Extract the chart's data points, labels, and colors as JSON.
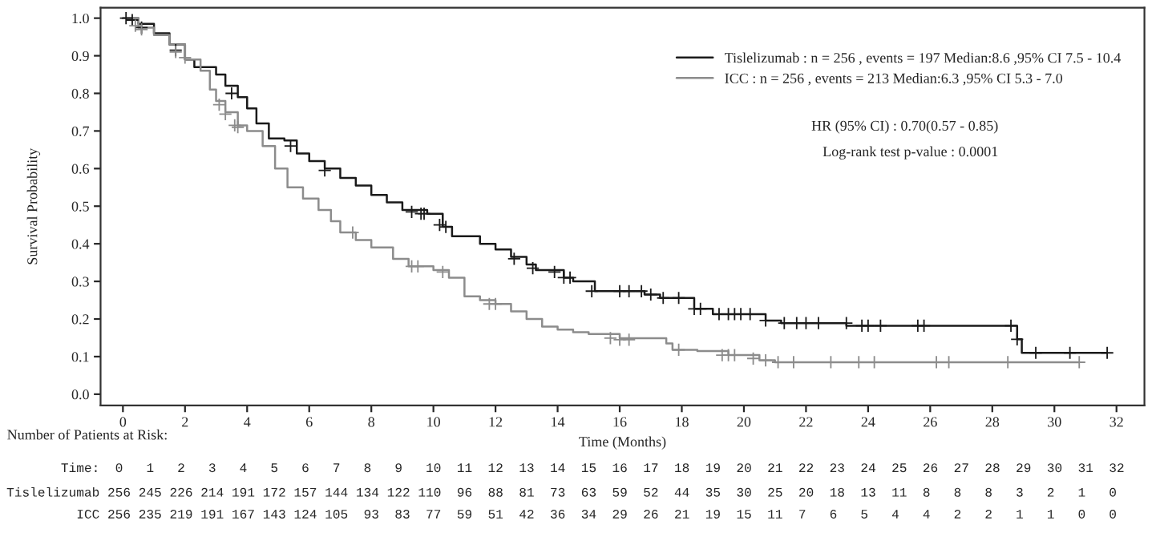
{
  "chart_data": {
    "type": "step",
    "xlabel": "Time (Months)",
    "ylabel": "Survival Probability",
    "xlim": [
      -0.72,
      32.9
    ],
    "ylim": [
      -0.03,
      1.028
    ],
    "xticks": [
      0,
      2,
      4,
      6,
      8,
      10,
      12,
      14,
      16,
      18,
      20,
      22,
      24,
      26,
      28,
      30,
      32
    ],
    "yticks": [
      {
        "value": 0,
        "label": "0.0"
      },
      {
        "value": 0.1,
        "label": "0.1"
      },
      {
        "value": 0.2,
        "label": "0.2"
      },
      {
        "value": 0.3,
        "label": "0.3"
      },
      {
        "value": 0.4,
        "label": "0.4"
      },
      {
        "value": 0.5,
        "label": "0.5"
      },
      {
        "value": 0.6,
        "label": "0.6"
      },
      {
        "value": 0.7,
        "label": "0.7"
      },
      {
        "value": 0.8,
        "label": "0.8"
      },
      {
        "value": 0.9,
        "label": "0.9"
      },
      {
        "value": 1,
        "label": "1.0"
      }
    ],
    "grid": false,
    "legend": "top right",
    "series": [
      {
        "name": "Tislelizumab : n = 256 , events = 197 Median:8.6 ,95% CI 7.5 - 10.4",
        "color": "#1a1a1a",
        "x": [
          0,
          0.5,
          1,
          1.5,
          2,
          2.3,
          3,
          3.3,
          3.7,
          4,
          4.3,
          4.7,
          5.2,
          5.6,
          6,
          6.5,
          7,
          7.5,
          8,
          8.5,
          9,
          9.8,
          10.3,
          10.6,
          11.5,
          12,
          12.5,
          13,
          13.3,
          14.2,
          14.5,
          15.2,
          16.8,
          17.3,
          18.4,
          19,
          20.7,
          21.2,
          23.3,
          28.8,
          28.95,
          31.7
        ],
        "values": [
          1.0,
          0.985,
          0.96,
          0.93,
          0.89,
          0.87,
          0.85,
          0.82,
          0.79,
          0.76,
          0.72,
          0.68,
          0.675,
          0.64,
          0.62,
          0.6,
          0.575,
          0.555,
          0.53,
          0.51,
          0.49,
          0.48,
          0.445,
          0.42,
          0.4,
          0.385,
          0.365,
          0.345,
          0.33,
          0.31,
          0.3,
          0.274,
          0.265,
          0.256,
          0.227,
          0.213,
          0.196,
          0.189,
          0.182,
          0.146,
          0.11,
          0.11
        ]
      },
      {
        "name": "ICC : n = 256 , events = 213 Median:6.3 ,95% CI 5.3 - 7.0",
        "color": "#8c8c8c",
        "x": [
          0,
          0.5,
          1,
          1.5,
          2,
          2.5,
          2.8,
          3,
          3.3,
          3.7,
          4,
          4.5,
          4.9,
          5.3,
          5.8,
          6.3,
          6.7,
          7,
          7.5,
          8,
          8.7,
          9.2,
          10,
          10.5,
          11,
          11.5,
          12,
          12.5,
          13,
          13.5,
          14,
          14.5,
          15,
          16,
          17.5,
          17.7,
          18.5,
          19.5,
          20.5,
          21,
          30.8
        ],
        "values": [
          1.0,
          0.975,
          0.955,
          0.93,
          0.89,
          0.86,
          0.81,
          0.78,
          0.75,
          0.715,
          0.7,
          0.66,
          0.6,
          0.55,
          0.52,
          0.49,
          0.46,
          0.43,
          0.41,
          0.39,
          0.36,
          0.34,
          0.33,
          0.31,
          0.26,
          0.25,
          0.24,
          0.22,
          0.2,
          0.18,
          0.172,
          0.165,
          0.16,
          0.149,
          0.135,
          0.118,
          0.115,
          0.104,
          0.09,
          0.085,
          0.085
        ]
      },
      {
        "type": "scatter",
        "marker": "cross",
        "color": "#1a1a1a",
        "x": [
          0.1,
          0.3,
          0.6,
          1.7,
          3.5,
          5.4,
          6.5,
          9.3,
          9.6,
          9.7,
          10.2,
          10.4,
          12.6,
          13.2,
          13.9,
          14.2,
          14.4,
          15.1,
          16.0,
          16.3,
          16.7,
          17.0,
          17.4,
          17.9,
          18.4,
          18.6,
          19.2,
          19.5,
          19.7,
          19.9,
          20.2,
          20.7,
          21.3,
          21.7,
          22.0,
          22.4,
          23.3,
          23.8,
          24.0,
          24.4,
          25.6,
          25.8,
          28.6,
          28.8,
          29.4,
          30.5,
          31.7
        ],
        "values": [
          1.0,
          0.995,
          0.975,
          0.915,
          0.8,
          0.66,
          0.595,
          0.485,
          0.48,
          0.48,
          0.45,
          0.445,
          0.36,
          0.335,
          0.325,
          0.31,
          0.31,
          0.274,
          0.274,
          0.274,
          0.274,
          0.265,
          0.256,
          0.256,
          0.227,
          0.227,
          0.213,
          0.213,
          0.213,
          0.213,
          0.213,
          0.196,
          0.189,
          0.189,
          0.189,
          0.189,
          0.189,
          0.182,
          0.182,
          0.182,
          0.182,
          0.182,
          0.182,
          0.146,
          0.11,
          0.11,
          0.11
        ]
      },
      {
        "type": "scatter",
        "marker": "cross",
        "color": "#8c8c8c",
        "x": [
          0.4,
          0.6,
          1.7,
          2.0,
          3.1,
          3.3,
          3.6,
          3.7,
          7.4,
          9.3,
          9.5,
          10.3,
          11.8,
          12.0,
          15.7,
          16.0,
          16.3,
          17.9,
          19.3,
          19.5,
          19.7,
          20.3,
          20.7,
          21.1,
          21.6,
          22.8,
          23.7,
          24.2,
          26.2,
          26.6,
          28.5,
          30.8
        ],
        "values": [
          0.98,
          0.97,
          0.91,
          0.895,
          0.77,
          0.745,
          0.715,
          0.71,
          0.43,
          0.34,
          0.34,
          0.325,
          0.24,
          0.24,
          0.149,
          0.145,
          0.145,
          0.118,
          0.104,
          0.104,
          0.104,
          0.095,
          0.09,
          0.085,
          0.085,
          0.085,
          0.085,
          0.085,
          0.085,
          0.085,
          0.085,
          0.085
        ]
      }
    ],
    "annotations": [
      "HR (95% CI) : 0.70(0.57 - 0.85)",
      "Log-rank test p-value : 0.0001",
      "Number of Patients at Risk:",
      "Time: 0 1 2 3 4 5 6 7 8 9 10 11 12 13 14 15 16 17 18 19 20 21 22 23 24 25 26 27 28 29 30 31 32",
      "Tislelizumab 256 245 226 214 191 172 157 144 134 122 110 96 88 81 73 63 59 52 44 35 30 25 20 18 13 11 8 8 8 3 2 1 0",
      "ICC 256 235 219 191 167 143 124 105 93 83 77 59 51 42 36 34 29 26 21 19 15 11 7 6 5 4 4 2 2 1 1 0 0"
    ]
  }
}
